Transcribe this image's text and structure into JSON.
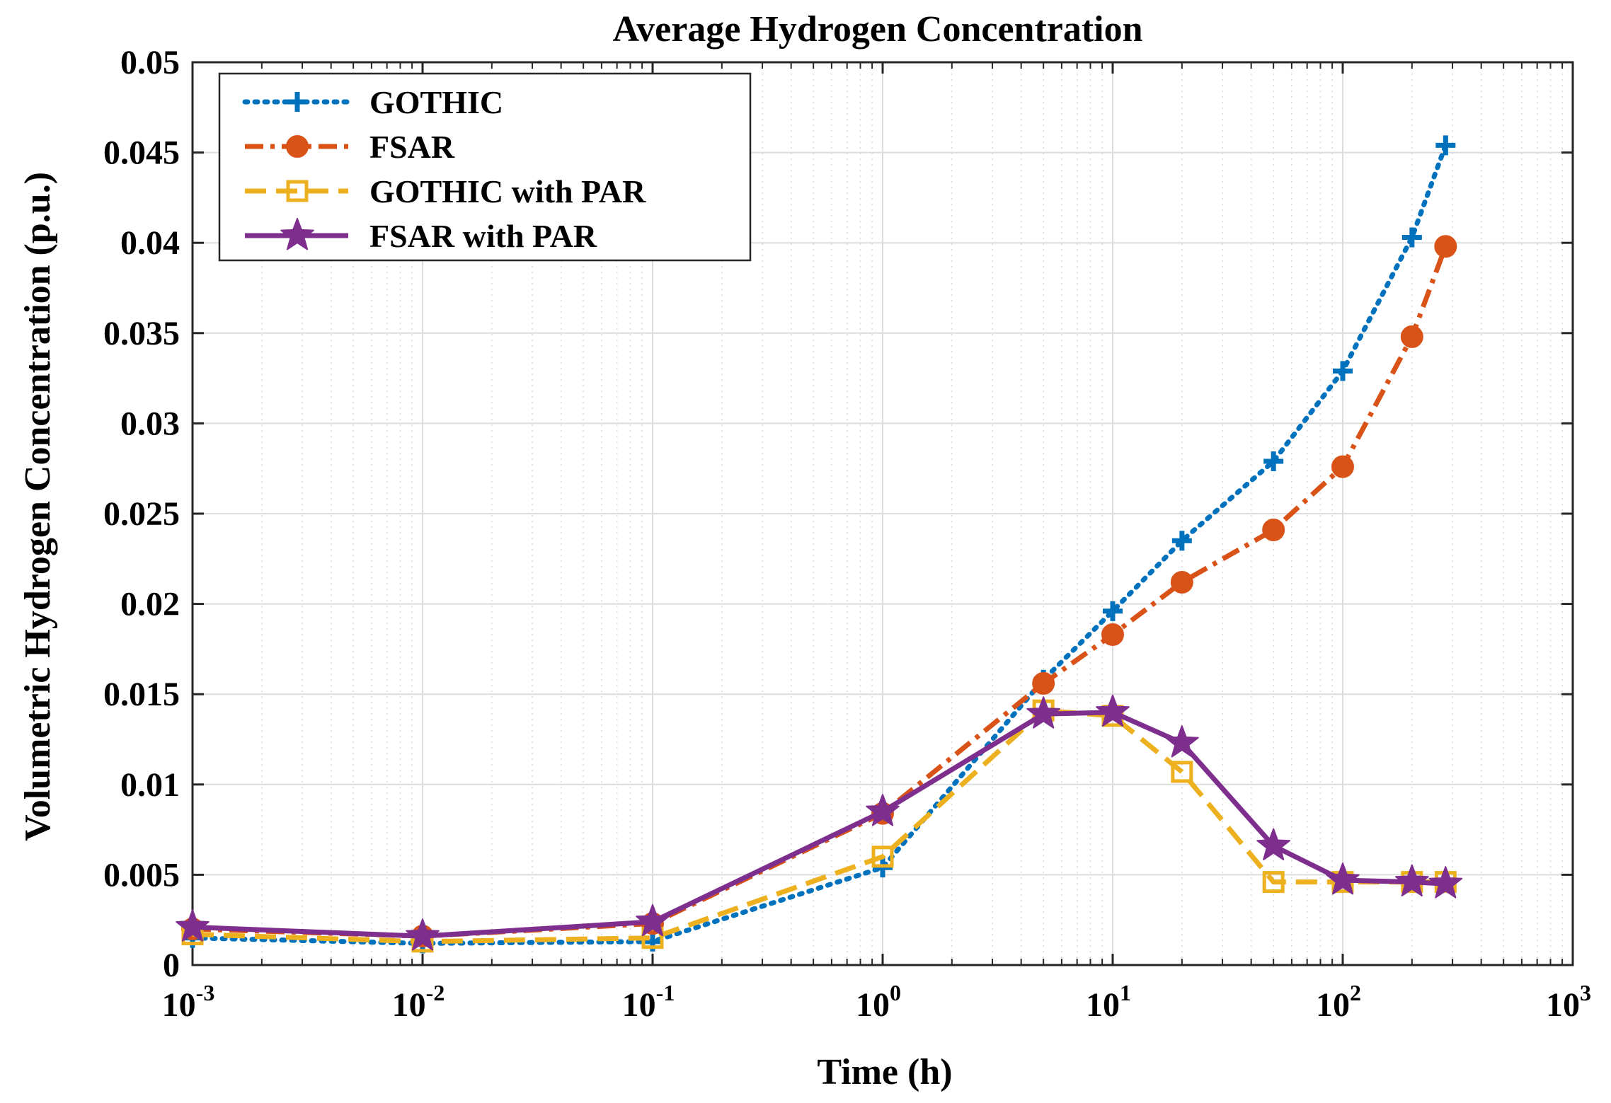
{
  "chart_data": {
    "type": "line",
    "title": "Average Hydrogen Concentration",
    "xlabel": "Time (h)",
    "ylabel": "Volumetric Hydrogen Concentration (p.u.)",
    "xscale": "log",
    "xlim": [
      0.001,
      1000
    ],
    "ylim": [
      0,
      0.05
    ],
    "grid": true,
    "legend_position": "top-left",
    "x_ticks": [
      {
        "base": "10",
        "exp": "-3"
      },
      {
        "base": "10",
        "exp": "-2"
      },
      {
        "base": "10",
        "exp": "-1"
      },
      {
        "base": "10",
        "exp": "0"
      },
      {
        "base": "10",
        "exp": "1"
      },
      {
        "base": "10",
        "exp": "2"
      },
      {
        "base": "10",
        "exp": "3"
      }
    ],
    "y_ticks": [
      "0",
      "0.005",
      "0.01",
      "0.015",
      "0.02",
      "0.025",
      "0.03",
      "0.035",
      "0.04",
      "0.045",
      "0.05"
    ],
    "series": [
      {
        "name": "GOTHIC",
        "color": "#0072BD",
        "line_style": "dotted",
        "marker": "plus",
        "x": [
          0.001,
          0.01,
          0.1,
          1,
          5,
          10,
          20,
          50,
          100,
          200,
          280
        ],
        "y": [
          0.0015,
          0.0012,
          0.0013,
          0.0054,
          0.0158,
          0.0196,
          0.0235,
          0.0279,
          0.0329,
          0.0403,
          0.0454
        ]
      },
      {
        "name": "FSAR",
        "color": "#D95319",
        "line_style": "dashdot",
        "marker": "circle",
        "x": [
          0.001,
          0.01,
          0.1,
          1,
          5,
          10,
          20,
          50,
          100,
          200,
          280
        ],
        "y": [
          0.002,
          0.0016,
          0.0023,
          0.0084,
          0.0156,
          0.0183,
          0.0212,
          0.0241,
          0.0276,
          0.0348,
          0.0398
        ]
      },
      {
        "name": "GOTHIC with PAR",
        "color": "#EDB120",
        "line_style": "dashed",
        "marker": "square",
        "x": [
          0.001,
          0.01,
          0.1,
          1,
          5,
          10,
          20,
          50,
          100,
          200,
          280
        ],
        "y": [
          0.0017,
          0.0013,
          0.0015,
          0.006,
          0.0141,
          0.0138,
          0.0107,
          0.0046,
          0.0046,
          0.0046,
          0.0046
        ]
      },
      {
        "name": "FSAR with PAR",
        "color": "#7E2F8E",
        "line_style": "solid",
        "marker": "star",
        "x": [
          0.001,
          0.01,
          0.1,
          1,
          5,
          10,
          20,
          50,
          100,
          200,
          280
        ],
        "y": [
          0.0021,
          0.0016,
          0.0024,
          0.0085,
          0.0139,
          0.014,
          0.0123,
          0.0066,
          0.0047,
          0.0046,
          0.0045
        ]
      }
    ]
  }
}
